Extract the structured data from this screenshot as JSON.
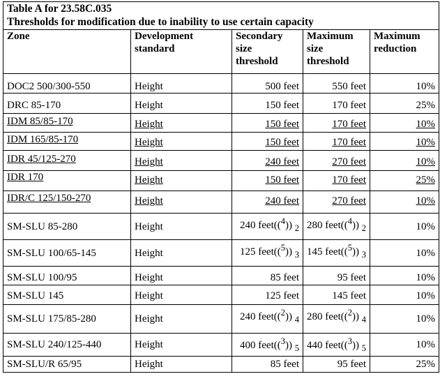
{
  "table": {
    "title_line1": "Table A for 23.58C.035",
    "title_line2": "Thresholds for modification due to inability to use certain capacity",
    "headers": {
      "zone": "Zone",
      "standard_l1": "Development",
      "standard_l2": "standard",
      "secondary_l1": "Secondary",
      "secondary_l2": "size",
      "secondary_l3": "threshold",
      "maximum_l1": "Maximum",
      "maximum_l2": "size",
      "maximum_l3": "threshold",
      "reduction_l1": "Maximum",
      "reduction_l2": "reduction"
    },
    "rows": [
      {
        "zone": "DOC2 500/300-550",
        "standard": "Height",
        "secondary": "500 feet",
        "maximum": "550 feet",
        "reduction": "10%",
        "underlined": false
      },
      {
        "zone": "DRC 85-170",
        "standard": "Height",
        "secondary": "150 feet",
        "maximum": "170 feet",
        "reduction": "25%",
        "underlined": false
      },
      {
        "zone": "IDM 85/85-170",
        "standard": "Height",
        "secondary": "150 feet",
        "maximum": "170 feet",
        "reduction": "10%",
        "underlined": true
      },
      {
        "zone": "IDM 165/85-170",
        "standard": "Height",
        "secondary": "150 feet",
        "maximum": "170 feet",
        "reduction": "10%",
        "underlined": true
      },
      {
        "zone": "IDR 45/125-270",
        "standard": "Height",
        "secondary": "240 feet",
        "maximum": "270 feet",
        "reduction": "10%",
        "underlined": true
      },
      {
        "zone": "IDR 170",
        "standard": "Height",
        "secondary": "150 feet",
        "maximum": "170 feet",
        "reduction": "25%",
        "underlined": true
      },
      {
        "zone": "IDR/C 125/150-270",
        "standard": "Height",
        "secondary": "240 feet",
        "maximum": "270 feet",
        "reduction": "10%",
        "underlined": true
      },
      {
        "zone": "SM-SLU 85-280",
        "standard": "Height",
        "secondary": "240 feet",
        "secondary_fn_old": "4",
        "secondary_fn_new": "2",
        "maximum": "280 feet",
        "maximum_fn_old": "4",
        "maximum_fn_new": "2",
        "reduction": "10%",
        "underlined": false
      },
      {
        "zone": "SM-SLU 100/65-145",
        "standard": "Height",
        "secondary": "125 feet",
        "secondary_fn_old": "5",
        "secondary_fn_new": "3",
        "maximum": "145 feet",
        "maximum_fn_old": "5",
        "maximum_fn_new": "3",
        "reduction": "10%",
        "underlined": false
      },
      {
        "zone": "SM-SLU 100/95",
        "standard": "Height",
        "secondary": "85 feet",
        "maximum": "95 feet",
        "reduction": "10%",
        "underlined": false
      },
      {
        "zone": "SM-SLU 145",
        "standard": "Height",
        "secondary": "125 feet",
        "maximum": "145 feet",
        "reduction": "10%",
        "underlined": false
      },
      {
        "zone": "SM-SLU 175/85-280",
        "standard": "Height",
        "secondary": "240 feet",
        "secondary_fn_old": "2",
        "secondary_fn_new": "4",
        "maximum": "280 feet",
        "maximum_fn_old": "2",
        "maximum_fn_new": "4",
        "reduction": "10%",
        "underlined": false
      },
      {
        "zone": "SM-SLU 240/125-440",
        "standard": "Height",
        "secondary": "400 feet",
        "secondary_fn_old": "3",
        "secondary_fn_new": "5",
        "maximum": "440 feet",
        "maximum_fn_old": "3",
        "maximum_fn_new": "5",
        "reduction": "10%",
        "underlined": false
      },
      {
        "zone": "SM-SLU/R 65/95",
        "standard": "Height",
        "secondary": "85 feet",
        "maximum": "95 feet",
        "reduction": "25%",
        "underlined": false
      }
    ],
    "fn_open": "((",
    "fn_close": "))"
  }
}
